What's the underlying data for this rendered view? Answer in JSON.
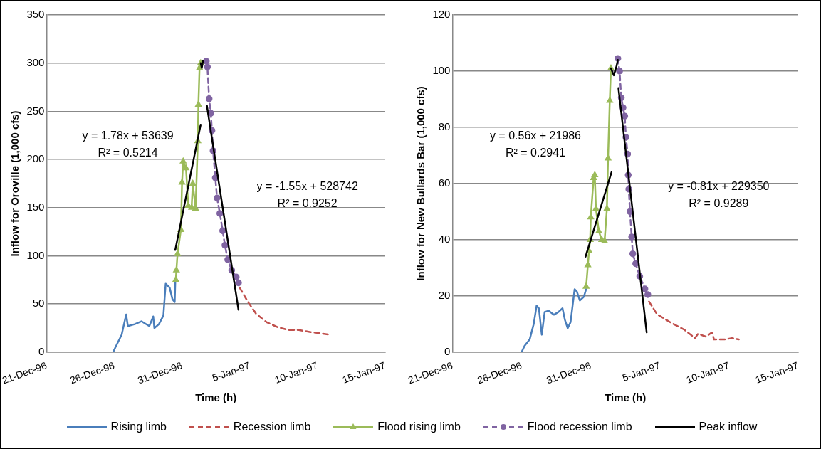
{
  "chart_data": [
    {
      "type": "line",
      "xlabel": "Time (h)",
      "ylabel": "Inflow for Oroville (1,000 cfs)",
      "xlim": [
        "1996-12-21",
        "1997-01-15"
      ],
      "xticks": [
        {
          "value": "1996-12-21",
          "label": "21-Dec-96"
        },
        {
          "value": "1996-12-26",
          "label": "26-Dec-96"
        },
        {
          "value": "1996-12-31",
          "label": "31-Dec-96"
        },
        {
          "value": "1997-01-05",
          "label": "5-Jan-97"
        },
        {
          "value": "1997-01-10",
          "label": "10-Jan-97"
        },
        {
          "value": "1997-01-15",
          "label": "15-Jan-97"
        }
      ],
      "ylim": [
        0,
        350
      ],
      "yticks": [
        0,
        50,
        100,
        150,
        200,
        250,
        300,
        350
      ],
      "grid": "y",
      "legend": "bottom",
      "annotations": [
        "y = 1.78x + 53639",
        "R² = 0.5214",
        "y = -1.55x + 528742",
        "R² = 0.9252"
      ],
      "series": [
        {
          "name": "Rising limb",
          "color": "#4a7ebb",
          "marker": "none",
          "line_style": "solid",
          "x": [
            "1996-12-25T22:00",
            "1996-12-26T02:00",
            "1996-12-26T13:00",
            "1996-12-26T21:00",
            "1996-12-27T00:00",
            "1996-12-27T12:00",
            "1996-12-28T00:00",
            "1996-12-28T14:00",
            "1996-12-28T21:00",
            "1996-12-28T23:00",
            "1996-12-29T07:00",
            "1996-12-29T15:00",
            "1996-12-29T19:00",
            "1996-12-30T02:00",
            "1996-12-30T07:00",
            "1996-12-30T11:00",
            "1996-12-30T12:00"
          ],
          "values": [
            0,
            5,
            18,
            39,
            27,
            29,
            32,
            27,
            37,
            25,
            29,
            38,
            71,
            67,
            55,
            52,
            72
          ]
        },
        {
          "name": "Recession limb",
          "color": "#c0504d",
          "marker": "none",
          "line_style": "dashed",
          "x": [
            "1997-01-04T06:00",
            "1997-01-04T21:00",
            "1997-01-05T11:00",
            "1997-01-06T06:00",
            "1997-01-07T01:00",
            "1997-01-07T20:00",
            "1997-01-08T15:00",
            "1997-01-09T10:00",
            "1997-01-10T05:00",
            "1997-01-10T22:00"
          ],
          "values": [
            67,
            52,
            40,
            31,
            26,
            23,
            23,
            21,
            19.5,
            18
          ]
        },
        {
          "name": "Flood rising limb",
          "color": "#9bbb59",
          "marker": "triangle",
          "line_style": "solid",
          "x": [
            "1996-12-30T13:00",
            "1996-12-30T14:00",
            "1996-12-30T16:00",
            "1996-12-30T22:00",
            "1996-12-31T00:00",
            "1996-12-31T02:00",
            "1996-12-31T07:00",
            "1996-12-31T11:00",
            "1996-12-31T17:00",
            "1996-12-31T19:00",
            "1997-01-01T00:00",
            "1997-01-01T04:00",
            "1997-01-01T05:00",
            "1997-01-01T07:00",
            "1997-01-01T09:00"
          ],
          "values": [
            75,
            85,
            102,
            127,
            176,
            198,
            191,
            152,
            150,
            175,
            149,
            219,
            257,
            295,
            300
          ]
        },
        {
          "name": "Flood recession limb",
          "color": "#8064a2",
          "marker": "circle",
          "line_style": "dashed",
          "x": [
            "1997-01-01T19:00",
            "1997-01-01T21:00",
            "1997-01-02T00:00",
            "1997-01-02T03:00",
            "1997-01-02T05:00",
            "1997-01-02T07:00",
            "1997-01-02T11:00",
            "1997-01-02T14:00",
            "1997-01-02T19:00",
            "1997-01-03T00:00",
            "1997-01-03T04:00",
            "1997-01-03T09:00",
            "1997-01-03T16:00",
            "1997-01-04T00:00",
            "1997-01-04T04:00"
          ],
          "values": [
            302,
            296,
            263,
            248,
            230,
            209,
            181,
            160,
            144,
            126,
            111,
            96,
            85,
            78,
            72
          ]
        },
        {
          "name": "Peak inflow",
          "color": "#000000",
          "marker": "none",
          "line_style": "solid",
          "x": [
            "1997-01-01T09:00",
            "1997-01-01T11:00",
            "1997-01-01T13:00"
          ],
          "values": [
            300,
            295,
            302
          ]
        },
        {
          "color": "#000000",
          "marker": "none",
          "line_style": "solid",
          "x": [
            "1996-12-30T12:00",
            "1997-01-01T09:00"
          ],
          "values": [
            106,
            236
          ]
        },
        {
          "color": "#000000",
          "marker": "none",
          "line_style": "solid",
          "x": [
            "1997-01-01T20:00",
            "1997-01-04T04:00"
          ],
          "values": [
            256,
            44
          ]
        }
      ]
    },
    {
      "type": "line",
      "xlabel": "Time (h)",
      "ylabel": "Inflow for New Bullards Bar (1,000 cfs)",
      "xlim": [
        "1996-12-21",
        "1997-01-15"
      ],
      "xticks": [
        {
          "value": "1996-12-21",
          "label": "21-Dec-96"
        },
        {
          "value": "1996-12-26",
          "label": "26-Dec-96"
        },
        {
          "value": "1996-12-31",
          "label": "31-Dec-96"
        },
        {
          "value": "1997-01-05",
          "label": "5-Jan-97"
        },
        {
          "value": "1997-01-10",
          "label": "10-Jan-97"
        },
        {
          "value": "1997-01-15",
          "label": "15-Jan-97"
        }
      ],
      "ylim": [
        0,
        120
      ],
      "yticks": [
        0,
        20,
        40,
        60,
        80,
        100,
        120
      ],
      "grid": "y",
      "annotations": [
        "y = 0.56x + 21986",
        "R² = 0.2941",
        "y = -0.81x + 229350",
        "R² = 0.9289"
      ],
      "series": [
        {
          "color": "#4a7ebb",
          "marker": "none",
          "line_style": "solid",
          "x": [
            "1996-12-26T00:00",
            "1996-12-26T05:00",
            "1996-12-26T14:00",
            "1996-12-26T21:00",
            "1996-12-27T02:00",
            "1996-12-27T06:00",
            "1996-12-27T11:00",
            "1996-12-27T16:00",
            "1996-12-27T23:00",
            "1996-12-28T08:00",
            "1996-12-28T16:00",
            "1996-12-28T23:00",
            "1996-12-29T03:00",
            "1996-12-29T08:00",
            "1996-12-29T13:00",
            "1996-12-29T20:00",
            "1996-12-30T00:00",
            "1996-12-30T05:00",
            "1996-12-30T12:00",
            "1996-12-30T16:00"
          ],
          "values": [
            0,
            2.2,
            4.5,
            10,
            16.5,
            15.6,
            6.2,
            14.3,
            14.7,
            13.3,
            14.3,
            15.6,
            11.6,
            8.5,
            10.7,
            22.4,
            21.5,
            18.4,
            19.7,
            22.4
          ]
        },
        {
          "color": "#c0504d",
          "marker": "none",
          "line_style": "dashed",
          "x": [
            "1997-01-04T05:00",
            "1997-01-04T19:00",
            "1997-01-05T19:00",
            "1997-01-06T18:00",
            "1997-01-07T13:00",
            "1997-01-07T18:00",
            "1997-01-08T08:00",
            "1997-01-08T18:00",
            "1997-01-08T22:00",
            "1997-01-09T17:00",
            "1997-01-10T05:00",
            "1997-01-10T17:00"
          ],
          "values": [
            18,
            13.5,
            10.5,
            8,
            5,
            6.5,
            5.5,
            7,
            4.5,
            4.5,
            5,
            4.5
          ]
        },
        {
          "color": "#9bbb59",
          "marker": "triangle",
          "line_style": "solid",
          "x": [
            "1996-12-30T16:00",
            "1996-12-30T19:00",
            "1996-12-30T21:00",
            "1996-12-30T23:00",
            "1996-12-31T00:00",
            "1996-12-31T05:00",
            "1996-12-31T07:00",
            "1996-12-31T09:00",
            "1996-12-31T14:00",
            "1996-12-31T19:00",
            "1997-01-01T00:00",
            "1997-01-01T04:00",
            "1997-01-01T06:00",
            "1997-01-01T09:00",
            "1997-01-01T11:00"
          ],
          "values": [
            23.3,
            31,
            36,
            40,
            48,
            62,
            63,
            51,
            43,
            40,
            39.5,
            51,
            69,
            89.5,
            101
          ]
        },
        {
          "color": "#8064a2",
          "marker": "circle",
          "line_style": "dashed",
          "x": [
            "1997-01-01T23:00",
            "1997-01-02T02:00",
            "1997-01-02T05:00",
            "1997-01-02T08:00",
            "1997-01-02T11:00",
            "1997-01-02T13:00",
            "1997-01-02T16:00",
            "1997-01-02T17:00",
            "1997-01-02T18:00",
            "1997-01-02T20:00",
            "1997-01-02T23:00",
            "1997-01-03T01:00",
            "1997-01-03T06:00",
            "1997-01-03T13:00",
            "1997-01-03T22:00",
            "1997-01-04T03:00"
          ],
          "values": [
            104.5,
            100,
            90.5,
            87,
            84,
            76.5,
            70.5,
            63,
            58,
            50,
            41,
            35,
            31.5,
            27,
            22.5,
            20.5
          ]
        },
        {
          "color": "#000000",
          "marker": "none",
          "line_style": "solid",
          "x": [
            "1997-01-01T11:00",
            "1997-01-01T16:00",
            "1997-01-01T21:00",
            "1997-01-01T23:00"
          ],
          "values": [
            101,
            98.5,
            102,
            104
          ]
        },
        {
          "color": "#000000",
          "marker": "none",
          "line_style": "solid",
          "x": [
            "1996-12-30T15:00",
            "1997-01-01T12:00"
          ],
          "values": [
            34,
            64
          ]
        },
        {
          "color": "#000000",
          "marker": "none",
          "line_style": "solid",
          "x": [
            "1997-01-02T00:00",
            "1997-01-04T01:00"
          ],
          "values": [
            94,
            7
          ]
        }
      ]
    }
  ]
}
